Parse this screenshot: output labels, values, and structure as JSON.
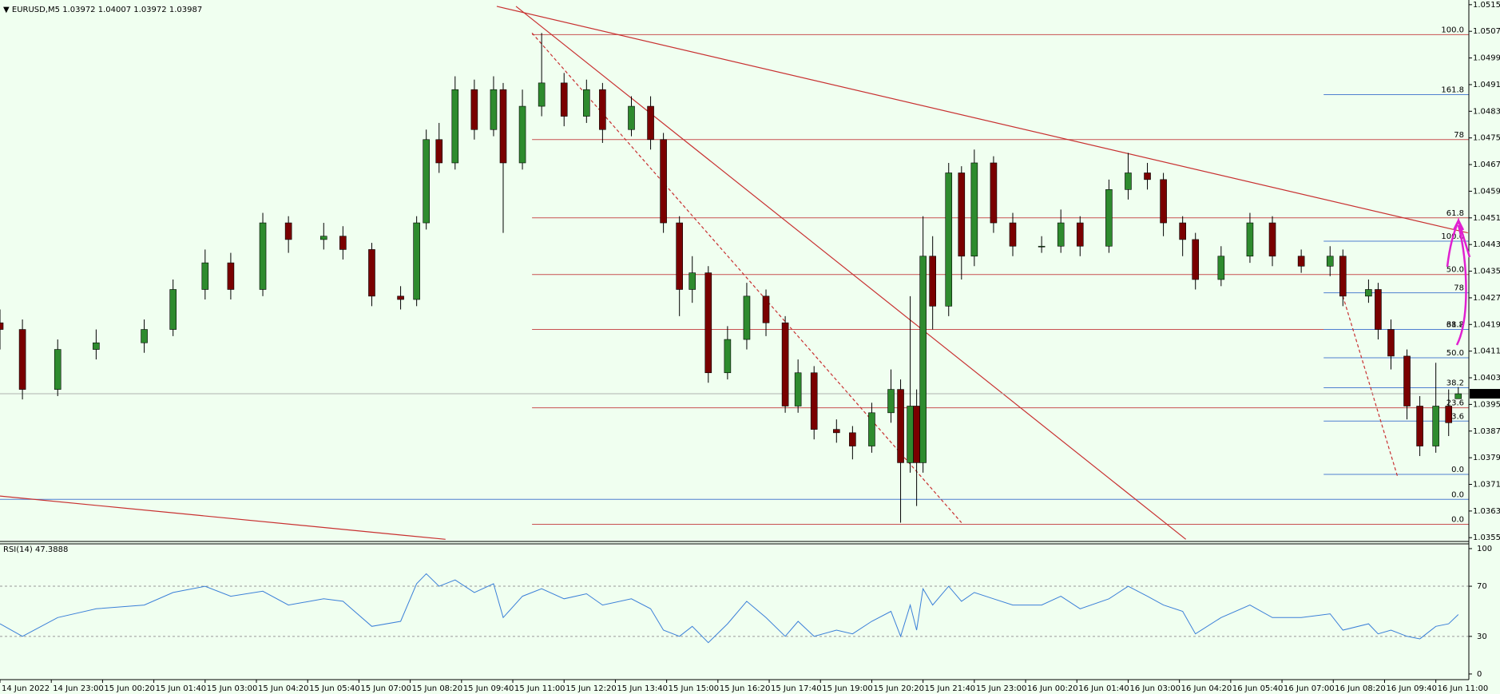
{
  "chart_data": {
    "type": "candlestick",
    "symbol": "EURUSD,M5",
    "xlim": [
      0,
      458.3
    ],
    "ylim": [
      1.03546,
      1.05169
    ],
    "yticks": [
      1.05155,
      1.05075,
      1.04995,
      1.04915,
      1.04835,
      1.04755,
      1.04675,
      1.04595,
      1.04515,
      1.04435,
      1.04355,
      1.04275,
      1.04195,
      1.04115,
      1.04035,
      1.03955,
      1.03875,
      1.03795,
      1.03715,
      1.03635,
      1.03555
    ],
    "xticks": [
      {
        "value": 0,
        "label": "14 Jun 2022"
      },
      {
        "value": 16,
        "label": "14 Jun 23:00"
      },
      {
        "value": 32,
        "label": "15 Jun 00:20"
      },
      {
        "value": 48,
        "label": "15 Jun 01:40"
      },
      {
        "value": 64,
        "label": "15 Jun 03:00"
      },
      {
        "value": 80,
        "label": "15 Jun 04:20"
      },
      {
        "value": 96,
        "label": "15 Jun 05:40"
      },
      {
        "value": 112,
        "label": "15 Jun 07:00"
      },
      {
        "value": 128,
        "label": "15 Jun 08:20"
      },
      {
        "value": 144,
        "label": "15 Jun 09:40"
      },
      {
        "value": 160,
        "label": "15 Jun 11:00"
      },
      {
        "value": 176,
        "label": "15 Jun 12:20"
      },
      {
        "value": 192,
        "label": "15 Jun 13:40"
      },
      {
        "value": 208,
        "label": "15 Jun 15:00"
      },
      {
        "value": 224,
        "label": "15 Jun 16:20"
      },
      {
        "value": 240,
        "label": "15 Jun 17:40"
      },
      {
        "value": 256,
        "label": "15 Jun 19:00"
      },
      {
        "value": 272,
        "label": "15 Jun 20:20"
      },
      {
        "value": 288,
        "label": "15 Jun 21:40"
      },
      {
        "value": 304,
        "label": "15 Jun 23:00"
      },
      {
        "value": 320,
        "label": "16 Jun 00:20"
      },
      {
        "value": 336,
        "label": "16 Jun 01:40"
      },
      {
        "value": 352,
        "label": "16 Jun 03:00"
      },
      {
        "value": 368,
        "label": "16 Jun 04:20"
      },
      {
        "value": 384,
        "label": "16 Jun 05:40"
      },
      {
        "value": 400,
        "label": "16 Jun 07:00"
      },
      {
        "value": 416,
        "label": "16 Jun 08:20"
      },
      {
        "value": 432,
        "label": "16 Jun 09:40"
      },
      {
        "value": 448,
        "label": "16 Jun 11:00"
      }
    ],
    "x": [
      0,
      7,
      18,
      30,
      45,
      54,
      64,
      72,
      82,
      90,
      101,
      107,
      116,
      125,
      130,
      133,
      137,
      142,
      148,
      154,
      157,
      163,
      169,
      176,
      183,
      188,
      197,
      203,
      207,
      212,
      216,
      221,
      227,
      233,
      239,
      245,
      249,
      254,
      261,
      266,
      272,
      278,
      281,
      284,
      286,
      288,
      291,
      296,
      300,
      304,
      310,
      316,
      325,
      331,
      337,
      346,
      352,
      358,
      363,
      369,
      373,
      381,
      390,
      397,
      406,
      415,
      419,
      427,
      430,
      434,
      439,
      443,
      448,
      452,
      455
    ],
    "open": [
      1.042,
      1.0418,
      1.04,
      1.0412,
      1.0414,
      1.0418,
      1.043,
      1.0438,
      1.043,
      1.045,
      1.0445,
      1.0446,
      1.0442,
      1.0428,
      1.0427,
      1.045,
      1.0475,
      1.0468,
      1.049,
      1.0478,
      1.049,
      1.0468,
      1.0485,
      1.0492,
      1.0482,
      1.049,
      1.0478,
      1.0485,
      1.0475,
      1.045,
      1.043,
      1.0435,
      1.0405,
      1.0415,
      1.0428,
      1.042,
      1.0395,
      1.0405,
      1.0388,
      1.0387,
      1.0383,
      1.0393,
      1.04,
      1.0378,
      1.0395,
      1.0378,
      1.044,
      1.0425,
      1.0465,
      1.044,
      1.0468,
      1.045,
      1.0443,
      1.0443,
      1.045,
      1.0443,
      1.046,
      1.0465,
      1.0463,
      1.045,
      1.0445,
      1.0433,
      1.044,
      1.045,
      1.044,
      1.0437,
      1.044,
      1.0428,
      1.043,
      1.0418,
      1.041,
      1.0395,
      1.0383,
      1.0395,
      1.03972
    ],
    "high": [
      1.0424,
      1.0421,
      1.0415,
      1.0418,
      1.0421,
      1.0433,
      1.0442,
      1.0441,
      1.0453,
      1.0452,
      1.045,
      1.0449,
      1.0444,
      1.0431,
      1.0452,
      1.0478,
      1.048,
      1.0494,
      1.0493,
      1.0494,
      1.0492,
      1.049,
      1.0507,
      1.0495,
      1.0493,
      1.0492,
      1.0488,
      1.0488,
      1.0477,
      1.0452,
      1.044,
      1.0437,
      1.0419,
      1.0432,
      1.043,
      1.0422,
      1.0409,
      1.0407,
      1.0391,
      1.0389,
      1.0396,
      1.0406,
      1.0403,
      1.0428,
      1.04,
      1.0452,
      1.0446,
      1.0468,
      1.0467,
      1.0472,
      1.047,
      1.0453,
      1.0446,
      1.0454,
      1.0452,
      1.0463,
      1.0471,
      1.0468,
      1.0465,
      1.0452,
      1.0447,
      1.0443,
      1.0453,
      1.0452,
      1.0442,
      1.0443,
      1.0442,
      1.0433,
      1.0432,
      1.0421,
      1.0412,
      1.0398,
      1.0408,
      1.04,
      1.04007
    ],
    "low": [
      1.0412,
      1.0397,
      1.0398,
      1.0409,
      1.0411,
      1.0416,
      1.0427,
      1.0427,
      1.0428,
      1.0441,
      1.0442,
      1.0439,
      1.0425,
      1.0424,
      1.0425,
      1.0448,
      1.0465,
      1.0466,
      1.0475,
      1.0476,
      1.0447,
      1.0466,
      1.0482,
      1.0479,
      1.048,
      1.0474,
      1.0476,
      1.0472,
      1.0447,
      1.0422,
      1.0426,
      1.0402,
      1.0403,
      1.0412,
      1.0416,
      1.0393,
      1.0393,
      1.0385,
      1.0384,
      1.0379,
      1.0381,
      1.039,
      1.036,
      1.0375,
      1.0365,
      1.0375,
      1.0418,
      1.0422,
      1.0433,
      1.0437,
      1.0447,
      1.044,
      1.0441,
      1.0441,
      1.044,
      1.0441,
      1.0457,
      1.046,
      1.0446,
      1.044,
      1.043,
      1.0431,
      1.0438,
      1.0437,
      1.0435,
      1.0434,
      1.0425,
      1.0426,
      1.0415,
      1.0406,
      1.0391,
      1.038,
      1.0381,
      1.0386,
      1.03972
    ],
    "close": [
      1.0418,
      1.04,
      1.0412,
      1.0414,
      1.0418,
      1.043,
      1.0438,
      1.043,
      1.045,
      1.0445,
      1.0446,
      1.0442,
      1.0428,
      1.0427,
      1.045,
      1.0475,
      1.0468,
      1.049,
      1.0478,
      1.049,
      1.0468,
      1.0485,
      1.0492,
      1.0482,
      1.049,
      1.0478,
      1.0485,
      1.0475,
      1.045,
      1.043,
      1.0435,
      1.0405,
      1.0415,
      1.0428,
      1.042,
      1.0395,
      1.0405,
      1.0388,
      1.0387,
      1.0383,
      1.0393,
      1.04,
      1.0378,
      1.0395,
      1.0378,
      1.044,
      1.0425,
      1.0465,
      1.044,
      1.0468,
      1.045,
      1.0443,
      1.0443,
      1.045,
      1.0443,
      1.046,
      1.0465,
      1.0463,
      1.045,
      1.0445,
      1.0433,
      1.044,
      1.045,
      1.044,
      1.0437,
      1.044,
      1.0428,
      1.043,
      1.0418,
      1.041,
      1.0395,
      1.0383,
      1.0395,
      1.039,
      1.03987
    ],
    "up_color": "#2e8b2e",
    "down_color": "#7a0000",
    "fibos": [
      {
        "color": "#c85050",
        "start": 166,
        "levels": [
          {
            "price": 1.05065,
            "label": "100.0"
          },
          {
            "price": 1.0475,
            "label": "78"
          },
          {
            "price": 1.04515,
            "label": "61.8"
          },
          {
            "price": 1.04345,
            "label": "50.0"
          },
          {
            "price": 1.0418,
            "label": "38.2"
          },
          {
            "price": 1.03945,
            "label": "23.6"
          },
          {
            "price": 1.03595,
            "label": "0.0"
          }
        ]
      },
      {
        "color": "#4f7fd0",
        "start": 413,
        "levels": [
          {
            "price": 1.04885,
            "label": "161.8"
          },
          {
            "price": 1.04445,
            "label": "100.0"
          },
          {
            "price": 1.0429,
            "label": "78"
          },
          {
            "price": 1.0418,
            "label": "61.8"
          },
          {
            "price": 1.04095,
            "label": "50.0"
          },
          {
            "price": 1.04005,
            "label": "38.2"
          },
          {
            "price": 1.03905,
            "label": "23.6"
          },
          {
            "price": 1.03745,
            "label": "0.0"
          }
        ]
      },
      {
        "color": "#4f7fd0",
        "start": 0,
        "levels": [
          {
            "price": 1.0367,
            "label": "0.0"
          }
        ]
      }
    ],
    "lines": [
      {
        "color": "#c83030",
        "dashed": false,
        "points": [
          [
            155,
            1.0515
          ],
          [
            458,
            1.0447
          ]
        ]
      },
      {
        "color": "#c83030",
        "dashed": false,
        "points": [
          [
            161,
            1.0515
          ],
          [
            370,
            1.0355
          ]
        ]
      },
      {
        "color": "#c83030",
        "dashed": false,
        "points": [
          [
            0,
            1.0368
          ],
          [
            139,
            1.0355
          ]
        ]
      },
      {
        "color": "#c83030",
        "dashed": true,
        "points": [
          [
            166,
            1.0507
          ],
          [
            300,
            1.036
          ]
        ]
      },
      {
        "color": "#c83030",
        "dashed": true,
        "points": [
          [
            419,
            1.0428
          ],
          [
            436,
            1.0374
          ]
        ]
      }
    ],
    "rsi": {
      "label": "RSI(14)",
      "color": "#3a7fd8",
      "ylim": [
        -4.5,
        103.8
      ],
      "yticks": [
        100,
        70,
        30,
        0
      ],
      "levels": [
        30,
        70
      ],
      "values": [
        40,
        30,
        45,
        52,
        55,
        65,
        70,
        62,
        66,
        55,
        60,
        58,
        38,
        42,
        72,
        80,
        70,
        75,
        65,
        72,
        45,
        62,
        68,
        60,
        64,
        55,
        60,
        52,
        35,
        30,
        38,
        25,
        40,
        58,
        45,
        30,
        42,
        30,
        35,
        32,
        42,
        50,
        30,
        55,
        35,
        68,
        55,
        70,
        58,
        65,
        60,
        55,
        55,
        62,
        52,
        60,
        70,
        62,
        55,
        50,
        32,
        45,
        55,
        45,
        45,
        48,
        35,
        40,
        32,
        35,
        30,
        28,
        38,
        40,
        47.3888
      ]
    }
  }
}
